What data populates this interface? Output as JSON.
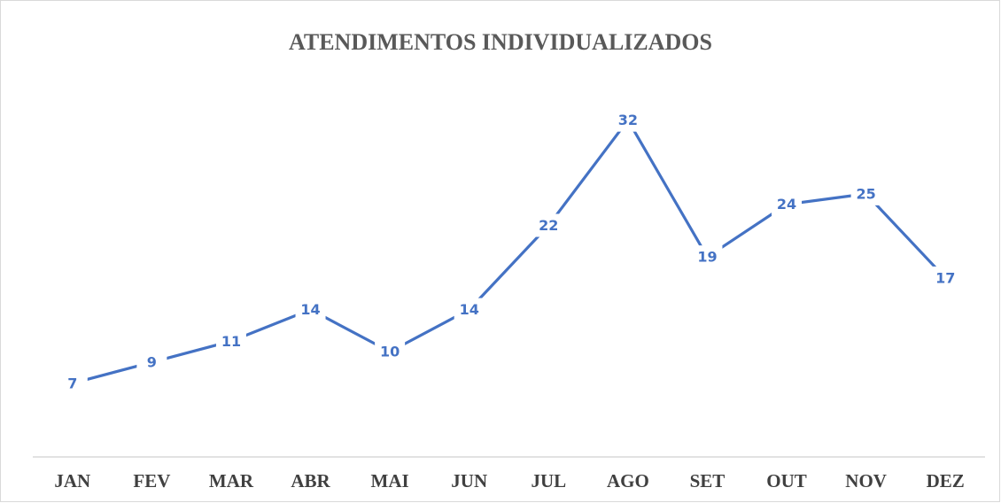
{
  "chart_data": {
    "type": "line",
    "title": "ATENDIMENTOS INDIVIDUALIZADOS",
    "categories": [
      "JAN",
      "FEV",
      "MAR",
      "ABR",
      "MAI",
      "JUN",
      "JUL",
      "AGO",
      "SET",
      "OUT",
      "NOV",
      "DEZ"
    ],
    "values": [
      7,
      9,
      11,
      14,
      10,
      14,
      22,
      32,
      19,
      24,
      25,
      17
    ],
    "color": "#4472c4",
    "ylim": [
      0,
      35
    ],
    "data_labels": true
  }
}
